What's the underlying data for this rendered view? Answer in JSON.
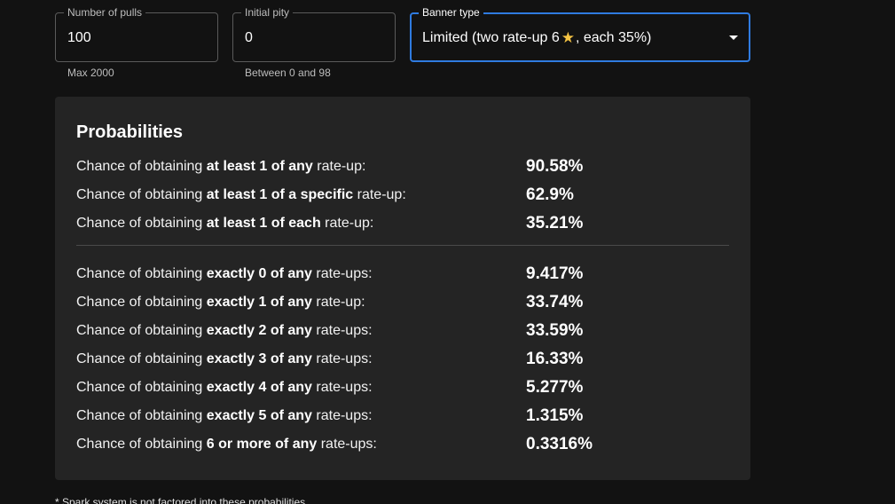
{
  "inputs": {
    "pulls": {
      "label": "Number of pulls",
      "value": "100",
      "helper": "Max 2000"
    },
    "pity": {
      "label": "Initial pity",
      "value": "0",
      "helper": "Between 0 and 98"
    },
    "banner": {
      "label": "Banner type",
      "value_prefix": "Limited (two rate-up 6",
      "value_suffix": ", each 35%)",
      "star_icon": "star-icon",
      "star_glyph": "★",
      "star_color": "#f6c443",
      "focus_color": "#2f7be0"
    }
  },
  "probabilities": {
    "title": "Probabilities",
    "label_prefix": "Chance of obtaining",
    "group1": [
      {
        "bold": "at least 1 of any",
        "suffix": " rate-up:",
        "value": "90.58%"
      },
      {
        "bold": "at least 1 of a specific",
        "suffix": " rate-up:",
        "value": "62.9%"
      },
      {
        "bold": "at least 1 of each",
        "suffix": " rate-up:",
        "value": "35.21%"
      }
    ],
    "group2": [
      {
        "bold": "exactly 0 of any",
        "suffix": " rate-ups:",
        "value": "9.417%"
      },
      {
        "bold": "exactly 1 of any",
        "suffix": " rate-up:",
        "value": "33.74%"
      },
      {
        "bold": "exactly 2 of any",
        "suffix": " rate-ups:",
        "value": "33.59%"
      },
      {
        "bold": "exactly 3 of any",
        "suffix": " rate-ups:",
        "value": "16.33%"
      },
      {
        "bold": "exactly 4 of any",
        "suffix": " rate-ups:",
        "value": "5.277%"
      },
      {
        "bold": "exactly 5 of any",
        "suffix": " rate-ups:",
        "value": "1.315%"
      },
      {
        "bold": "6 or more of any",
        "suffix": " rate-ups:",
        "value": "0.3316%"
      }
    ]
  },
  "footnote": "* Spark system is not factored into these probabilities"
}
